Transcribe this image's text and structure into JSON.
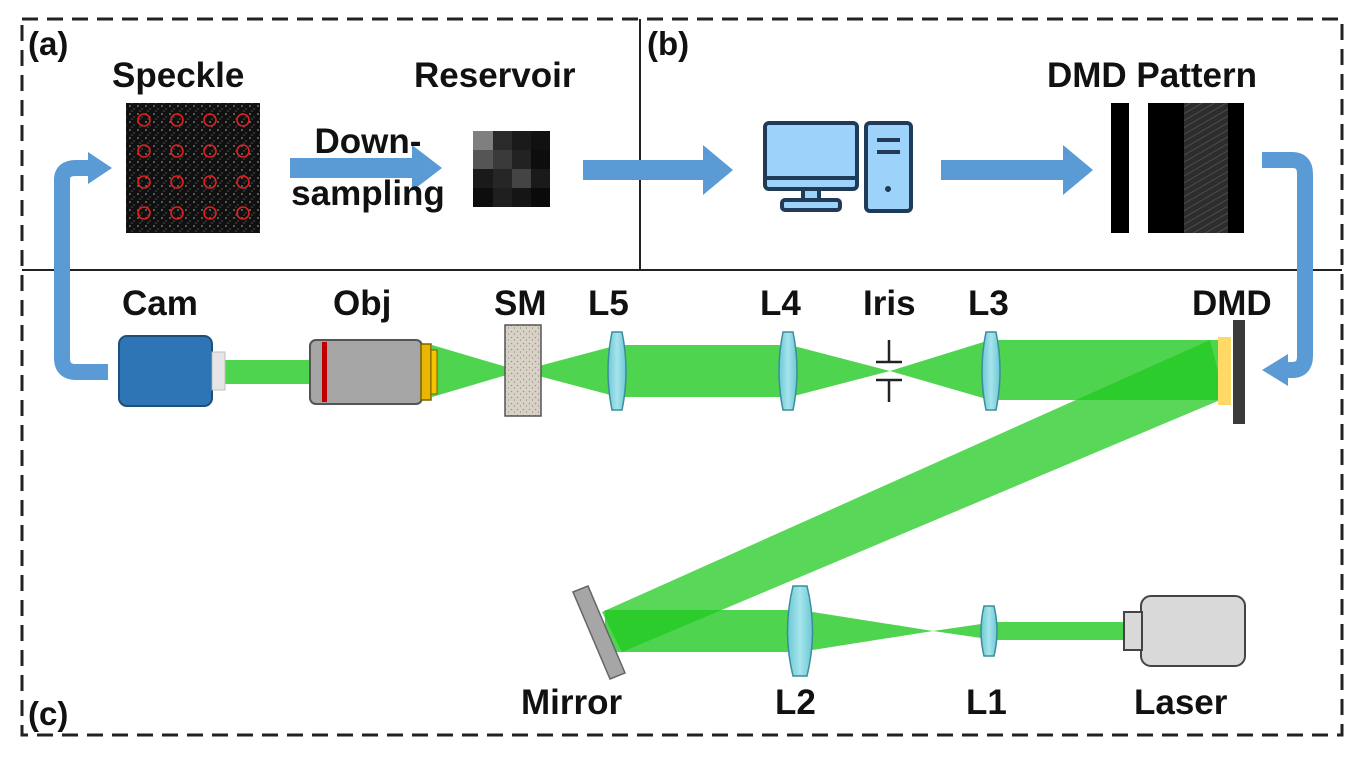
{
  "panels": {
    "a": "(a)",
    "b": "(b)",
    "c": "(c)"
  },
  "labels": {
    "speckle": "Speckle",
    "reservoir": "Reservoir",
    "downsampling_line1": "Down-",
    "downsampling_line2": "sampling",
    "dmd_pattern": "DMD Pattern",
    "cam": "Cam",
    "obj": "Obj",
    "sm": "SM",
    "l5": "L5",
    "l4": "L4",
    "iris": "Iris",
    "l3": "L3",
    "dmd": "DMD",
    "mirror": "Mirror",
    "l2": "L2",
    "l1": "L1",
    "laser": "Laser"
  },
  "colors": {
    "beam": "#22c922",
    "arrow": "#5b9bd5",
    "lens": "#7fd3dd",
    "camera": "#2e75b6",
    "monitor": "#9dd3fa",
    "objective": "#a6a6a6",
    "objective_ring": "#e8b800",
    "dmd_coating": "#ffd966",
    "laser_body": "#d9d9d9"
  },
  "icons": [
    "camera-icon",
    "objective-icon",
    "scattering-medium-icon",
    "lens-icon",
    "iris-icon",
    "dmd-icon",
    "mirror-icon",
    "laser-icon",
    "computer-icon",
    "speckle-image",
    "reservoir-image",
    "dmd-pattern-image",
    "arrow-icon"
  ]
}
